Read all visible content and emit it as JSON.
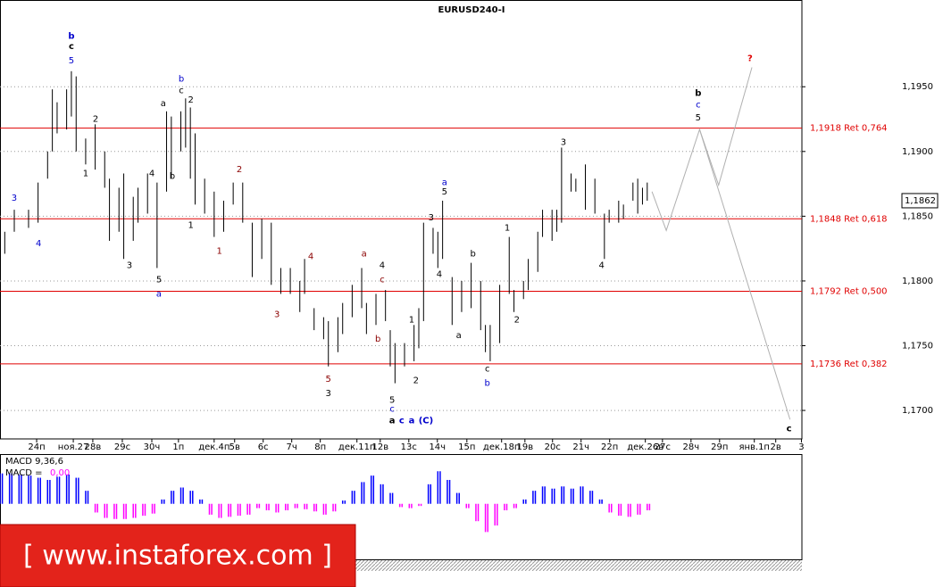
{
  "chart_data": {
    "type": "ohlc",
    "title": "EURUSD240-I",
    "xlim": [
      0,
      168.5
    ],
    "ylim": [
      1.1678,
      1.2017
    ],
    "yticks": [
      {
        "value": 1.195,
        "label": "1,1950"
      },
      {
        "value": 1.19,
        "label": "1,1900"
      },
      {
        "value": 1.185,
        "label": "1,1850"
      },
      {
        "value": 1.18,
        "label": "1,1800"
      },
      {
        "value": 1.175,
        "label": "1,1750"
      },
      {
        "value": 1.17,
        "label": "1,1700"
      }
    ],
    "xticks": [
      {
        "value": 7.7,
        "label": "24п"
      },
      {
        "value": 15.4,
        "label": "ноя.27"
      },
      {
        "value": 19.5,
        "label": "28в"
      },
      {
        "value": 25.7,
        "label": "29с"
      },
      {
        "value": 31.9,
        "label": "30ч"
      },
      {
        "value": 37.5,
        "label": "1п"
      },
      {
        "value": 45.0,
        "label": "дек.4п"
      },
      {
        "value": 49.3,
        "label": "5в"
      },
      {
        "value": 55.3,
        "label": "6с"
      },
      {
        "value": 61.3,
        "label": "7ч"
      },
      {
        "value": 67.3,
        "label": "8п"
      },
      {
        "value": 75.0,
        "label": "дек.11п"
      },
      {
        "value": 79.9,
        "label": "12в"
      },
      {
        "value": 85.9,
        "label": "13с"
      },
      {
        "value": 91.9,
        "label": "14ч"
      },
      {
        "value": 98.1,
        "label": "15п"
      },
      {
        "value": 105.4,
        "label": "дек.18п"
      },
      {
        "value": 110.3,
        "label": "19в"
      },
      {
        "value": 116.1,
        "label": "20с"
      },
      {
        "value": 122.1,
        "label": "21ч"
      },
      {
        "value": 128.1,
        "label": "22п"
      },
      {
        "value": 135.6,
        "label": "дек.26в"
      },
      {
        "value": 139.2,
        "label": "27с"
      },
      {
        "value": 145.2,
        "label": "28ч"
      },
      {
        "value": 151.2,
        "label": "29п"
      },
      {
        "value": 158.5,
        "label": "янв.1п"
      },
      {
        "value": 163.0,
        "label": "2в"
      },
      {
        "value": 168.4,
        "label": "3"
      }
    ],
    "grid": true,
    "bar_color": "#000000",
    "x": [
      1,
      3,
      6,
      8,
      10,
      11,
      12,
      14,
      15,
      16,
      18,
      20,
      22,
      23,
      25,
      26,
      28,
      29,
      31,
      33,
      35,
      36,
      38,
      39,
      40,
      41,
      43,
      45,
      47,
      49,
      51,
      53,
      55,
      57,
      59,
      61,
      63,
      64,
      66,
      68,
      69,
      71,
      72,
      74,
      76,
      77,
      79,
      81,
      82,
      83,
      85,
      87,
      88,
      89,
      91,
      92,
      93,
      95,
      97,
      99,
      101,
      102,
      103,
      105,
      107,
      108,
      110,
      111,
      113,
      114,
      116,
      117,
      118,
      120,
      121,
      123,
      125,
      127,
      128,
      130,
      131,
      133,
      134,
      135,
      136
    ],
    "high": [
      1.1838,
      1.1855,
      1.1855,
      1.1876,
      1.19,
      1.1948,
      1.1938,
      1.1948,
      1.1962,
      1.1958,
      1.191,
      1.1921,
      1.19,
      1.1879,
      1.1872,
      1.1883,
      1.1865,
      1.1872,
      1.1883,
      1.1876,
      1.1931,
      1.1927,
      1.1931,
      1.1941,
      1.1934,
      1.1914,
      1.1879,
      1.1869,
      1.1862,
      1.1876,
      1.1876,
      1.1845,
      1.1848,
      1.1845,
      1.181,
      1.181,
      1.18,
      1.1817,
      1.1779,
      1.1772,
      1.1769,
      1.1772,
      1.1783,
      1.1797,
      1.181,
      1.1783,
      1.179,
      1.1793,
      1.1762,
      1.1752,
      1.1752,
      1.1766,
      1.1779,
      1.1845,
      1.1841,
      1.1838,
      1.1862,
      1.1803,
      1.18,
      1.1814,
      1.18,
      1.1766,
      1.1766,
      1.1797,
      1.1834,
      1.1793,
      1.18,
      1.1817,
      1.1838,
      1.1855,
      1.1855,
      1.1855,
      1.1903,
      1.1883,
      1.1879,
      1.189,
      1.1879,
      1.1852,
      1.1855,
      1.1862,
      1.1859,
      1.1876,
      1.1879,
      1.1872,
      1.1876
    ],
    "low": [
      1.1821,
      1.1838,
      1.1841,
      1.1845,
      1.1879,
      1.19,
      1.1914,
      1.1917,
      1.1927,
      1.19,
      1.189,
      1.1886,
      1.1872,
      1.1831,
      1.1838,
      1.1817,
      1.1831,
      1.1845,
      1.1852,
      1.181,
      1.1869,
      1.1879,
      1.19,
      1.1903,
      1.1879,
      1.1859,
      1.1852,
      1.1834,
      1.1838,
      1.1859,
      1.1845,
      1.1803,
      1.1817,
      1.1797,
      1.179,
      1.179,
      1.1776,
      1.179,
      1.1762,
      1.1755,
      1.1734,
      1.1745,
      1.1759,
      1.1772,
      1.1779,
      1.1759,
      1.1766,
      1.1769,
      1.1734,
      1.1721,
      1.1734,
      1.1738,
      1.1748,
      1.1769,
      1.1821,
      1.181,
      1.1817,
      1.1766,
      1.1776,
      1.1779,
      1.1762,
      1.1745,
      1.1738,
      1.1752,
      1.179,
      1.1776,
      1.1786,
      1.1793,
      1.1807,
      1.1834,
      1.1831,
      1.1838,
      1.1845,
      1.1869,
      1.1869,
      1.1855,
      1.1852,
      1.1817,
      1.1845,
      1.1845,
      1.1848,
      1.1862,
      1.1852,
      1.1859,
      1.1862
    ],
    "levels": [
      {
        "value": 1.1918,
        "label": "1,1918 Ret 0,764",
        "color": "#e00000"
      },
      {
        "value": 1.1848,
        "label": "1,1848 Ret 0,618",
        "color": "#e00000"
      },
      {
        "value": 1.1792,
        "label": "1,1792 Ret 0,500",
        "color": "#e00000"
      },
      {
        "value": 1.1736,
        "label": "1,1736 Ret 0,382",
        "color": "#e00000"
      }
    ],
    "last": {
      "value": 1.1862,
      "label": "1,1862"
    },
    "projections": [
      {
        "color": "#b0b0b0",
        "x": [
          137,
          140,
          147,
          151,
          158
        ],
        "values": [
          1.1869,
          1.1839,
          1.1917,
          1.1874,
          1.1965
        ]
      },
      {
        "color": "#b0b0b0",
        "x": [
          147,
          166
        ],
        "values": [
          1.1917,
          1.1693
        ]
      }
    ],
    "annotations": [
      {
        "text": "b",
        "x": 15.0,
        "y": 1.1989,
        "color": "#0000cc",
        "bold": true
      },
      {
        "text": "c",
        "x": 15.0,
        "y": 1.1981,
        "color": "#000000",
        "bold": true
      },
      {
        "text": "5",
        "x": 15.0,
        "y": 1.197,
        "color": "#0000cc",
        "bold": false
      },
      {
        "text": "2",
        "x": 20.1,
        "y": 1.1925,
        "color": "#000000",
        "bold": false
      },
      {
        "text": "1",
        "x": 18.0,
        "y": 1.1883,
        "color": "#000000",
        "bold": false
      },
      {
        "text": "3",
        "x": 3.0,
        "y": 1.1864,
        "color": "#0000cc",
        "bold": false
      },
      {
        "text": "4",
        "x": 8.1,
        "y": 1.1829,
        "color": "#0000cc",
        "bold": false
      },
      {
        "text": "3",
        "x": 27.2,
        "y": 1.1812,
        "color": "#000000",
        "bold": false
      },
      {
        "text": "4",
        "x": 31.9,
        "y": 1.1883,
        "color": "#000000",
        "bold": false
      },
      {
        "text": "5",
        "x": 33.4,
        "y": 1.1801,
        "color": "#000000",
        "bold": false
      },
      {
        "text": "a",
        "x": 33.4,
        "y": 1.179,
        "color": "#0000cc",
        "bold": false
      },
      {
        "text": "a",
        "x": 34.3,
        "y": 1.1937,
        "color": "#000000",
        "bold": false
      },
      {
        "text": "b",
        "x": 38.1,
        "y": 1.1956,
        "color": "#0000cc",
        "bold": false
      },
      {
        "text": "c",
        "x": 38.1,
        "y": 1.1947,
        "color": "#000000",
        "bold": false
      },
      {
        "text": "2",
        "x": 40.1,
        "y": 1.194,
        "color": "#000000",
        "bold": false
      },
      {
        "text": "b",
        "x": 36.2,
        "y": 1.1881,
        "color": "#000000",
        "bold": false
      },
      {
        "text": "1",
        "x": 40.1,
        "y": 1.1843,
        "color": "#000000",
        "bold": false
      },
      {
        "text": "2",
        "x": 50.3,
        "y": 1.1886,
        "color": "#8b0000",
        "bold": false
      },
      {
        "text": "1",
        "x": 46.1,
        "y": 1.1823,
        "color": "#8b0000",
        "bold": false
      },
      {
        "text": "3",
        "x": 58.2,
        "y": 1.1774,
        "color": "#8b0000",
        "bold": false
      },
      {
        "text": "4",
        "x": 65.3,
        "y": 1.1819,
        "color": "#8b0000",
        "bold": false
      },
      {
        "text": "a",
        "x": 76.5,
        "y": 1.1821,
        "color": "#8b0000",
        "bold": false
      },
      {
        "text": "4",
        "x": 80.3,
        "y": 1.1812,
        "color": "#000000",
        "bold": false
      },
      {
        "text": "c",
        "x": 80.3,
        "y": 1.1801,
        "color": "#8b0000",
        "bold": false
      },
      {
        "text": "b",
        "x": 79.4,
        "y": 1.1755,
        "color": "#8b0000",
        "bold": false
      },
      {
        "text": "5",
        "x": 69.0,
        "y": 1.1724,
        "color": "#8b0000",
        "bold": false
      },
      {
        "text": "3",
        "x": 69.0,
        "y": 1.1713,
        "color": "#000000",
        "bold": false
      },
      {
        "text": "5",
        "x": 82.4,
        "y": 1.1708,
        "color": "#000000",
        "bold": false
      },
      {
        "text": "c",
        "x": 82.4,
        "y": 1.1701,
        "color": "#0000cc",
        "bold": false
      },
      {
        "text": "2",
        "x": 87.4,
        "y": 1.1723,
        "color": "#000000",
        "bold": false
      },
      {
        "text": "1",
        "x": 86.5,
        "y": 1.177,
        "color": "#000000",
        "bold": false
      },
      {
        "text": "3",
        "x": 90.6,
        "y": 1.1849,
        "color": "#000000",
        "bold": false
      },
      {
        "text": "a",
        "x": 93.4,
        "y": 1.1876,
        "color": "#0000cc",
        "bold": false
      },
      {
        "text": "5",
        "x": 93.4,
        "y": 1.1869,
        "color": "#000000",
        "bold": false
      },
      {
        "text": "4",
        "x": 92.3,
        "y": 1.1805,
        "color": "#000000",
        "bold": false
      },
      {
        "text": "a",
        "x": 96.4,
        "y": 1.1758,
        "color": "#000000",
        "bold": false
      },
      {
        "text": "b",
        "x": 99.4,
        "y": 1.1821,
        "color": "#000000",
        "bold": false
      },
      {
        "text": "c",
        "x": 102.4,
        "y": 1.1732,
        "color": "#000000",
        "bold": false
      },
      {
        "text": "b",
        "x": 102.4,
        "y": 1.1721,
        "color": "#0000cc",
        "bold": false
      },
      {
        "text": "1",
        "x": 106.6,
        "y": 1.1841,
        "color": "#000000",
        "bold": false
      },
      {
        "text": "2",
        "x": 108.6,
        "y": 1.177,
        "color": "#000000",
        "bold": false
      },
      {
        "text": "3",
        "x": 118.4,
        "y": 1.1907,
        "color": "#000000",
        "bold": false
      },
      {
        "text": "4",
        "x": 126.4,
        "y": 1.1812,
        "color": "#000000",
        "bold": false
      },
      {
        "text": "b",
        "x": 146.7,
        "y": 1.1945,
        "color": "#000000",
        "bold": true
      },
      {
        "text": "c",
        "x": 146.7,
        "y": 1.1936,
        "color": "#0000cc",
        "bold": false
      },
      {
        "text": "5",
        "x": 146.7,
        "y": 1.1926,
        "color": "#000000",
        "bold": false
      },
      {
        "text": "?",
        "x": 157.6,
        "y": 1.1972,
        "color": "#e00000",
        "bold": true
      },
      {
        "text": "c",
        "x": 165.8,
        "y": 1.1686,
        "color": "#000000",
        "bold": true
      },
      {
        "text": "a",
        "x": 82.4,
        "y": 1.1692,
        "color": "#000000",
        "bold": true
      },
      {
        "text": "c",
        "x": 84.4,
        "y": 1.1692,
        "color": "#0000cc",
        "bold": true
      },
      {
        "text": "a",
        "x": 86.5,
        "y": 1.1692,
        "color": "#0000cc",
        "bold": true
      },
      {
        "text": "(C)",
        "x": 89.5,
        "y": 1.1692,
        "color": "#0000cc",
        "bold": true
      }
    ],
    "macd": {
      "name": "MACD 9,36,6",
      "line_name": "MACD =",
      "current": "0,00",
      "ylim": [
        -0.0052,
        0.0045
      ],
      "positive_color": "#0000ff",
      "negative_color": "#ff00ff",
      "x": [
        0,
        2,
        4,
        6,
        8,
        10,
        12,
        14,
        16,
        18,
        20,
        22,
        24,
        26,
        28,
        30,
        32,
        34,
        36,
        38,
        40,
        42,
        44,
        46,
        48,
        50,
        52,
        54,
        56,
        58,
        60,
        62,
        64,
        66,
        68,
        70,
        72,
        74,
        76,
        78,
        80,
        82,
        84,
        86,
        88,
        90,
        92,
        94,
        96,
        98,
        100,
        102,
        104,
        106,
        108,
        110,
        112,
        114,
        116,
        118,
        120,
        122,
        124,
        126,
        128,
        130,
        132,
        134,
        136
      ],
      "values": [
        0.0028,
        0.0028,
        0.0027,
        0.0026,
        0.0024,
        0.0022,
        0.0025,
        0.0027,
        0.0024,
        0.0012,
        -0.0008,
        -0.0013,
        -0.0014,
        -0.0014,
        -0.0013,
        -0.0011,
        -0.0009,
        0.0004,
        0.0012,
        0.0015,
        0.0012,
        0.0004,
        -0.001,
        -0.0013,
        -0.0012,
        -0.0011,
        -0.001,
        -0.0004,
        -0.0006,
        -0.0008,
        -0.0006,
        -0.0004,
        -0.0005,
        -0.0007,
        -0.001,
        -0.0007,
        0.0003,
        0.0012,
        0.002,
        0.0026,
        0.0018,
        0.001,
        -0.0003,
        -0.0004,
        -0.0002,
        0.0018,
        0.003,
        0.0022,
        0.001,
        -0.0004,
        -0.0016,
        -0.0026,
        -0.002,
        -0.0006,
        -0.0004,
        0.0004,
        0.0012,
        0.0016,
        0.0014,
        0.0016,
        0.0014,
        0.0016,
        0.0012,
        0.0004,
        -0.0008,
        -0.0011,
        -0.0012,
        -0.001,
        -0.0006
      ]
    },
    "banner": "[ www.instaforex.com ]"
  }
}
